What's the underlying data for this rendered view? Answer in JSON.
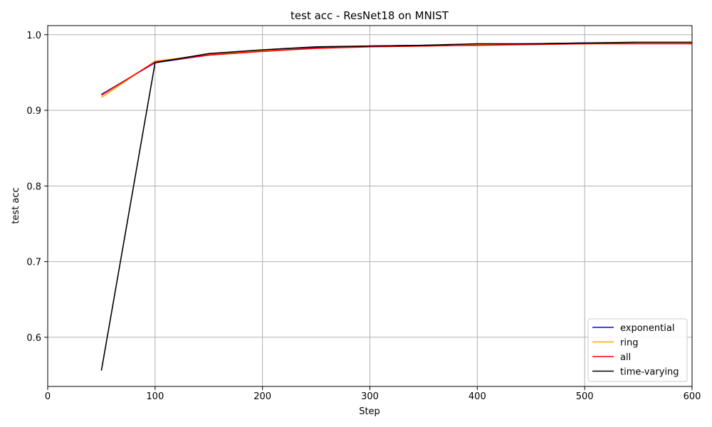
{
  "chart_data": {
    "type": "line",
    "title": "test acc - ResNet18 on MNIST",
    "xlabel": "Step",
    "ylabel": "test acc",
    "xlim": [
      0,
      600
    ],
    "ylim": [
      0.535,
      1.012
    ],
    "xticks": [
      0,
      100,
      200,
      300,
      400,
      500,
      600
    ],
    "yticks": [
      0.6,
      0.7,
      0.8,
      0.9,
      1.0
    ],
    "xtick_labels": [
      "0",
      "100",
      "200",
      "300",
      "400",
      "500",
      "600"
    ],
    "ytick_labels": [
      "0.6",
      "0.7",
      "0.8",
      "0.9",
      "1.0"
    ],
    "grid": true,
    "legend_position": "lower-right",
    "x": [
      50,
      100,
      150,
      200,
      250,
      300,
      350,
      400,
      450,
      500,
      550,
      600
    ],
    "series": [
      {
        "name": "exponential",
        "color": "#0000ff",
        "values": [
          0.921,
          0.963,
          0.973,
          0.979,
          0.983,
          0.985,
          0.986,
          0.987,
          0.988,
          0.989,
          0.989,
          0.989
        ]
      },
      {
        "name": "ring",
        "color": "#ffa500",
        "values": [
          0.917,
          0.965,
          0.974,
          0.979,
          0.982,
          0.984,
          0.985,
          0.987,
          0.987,
          0.988,
          0.989,
          0.989
        ]
      },
      {
        "name": "all",
        "color": "#ff0000",
        "values": [
          0.92,
          0.964,
          0.973,
          0.978,
          0.982,
          0.984,
          0.985,
          0.986,
          0.987,
          0.988,
          0.988,
          0.988
        ]
      },
      {
        "name": "time-varying",
        "color": "#000000",
        "values": [
          0.556,
          0.963,
          0.975,
          0.98,
          0.984,
          0.985,
          0.986,
          0.988,
          0.988,
          0.989,
          0.99,
          0.99
        ]
      }
    ]
  }
}
